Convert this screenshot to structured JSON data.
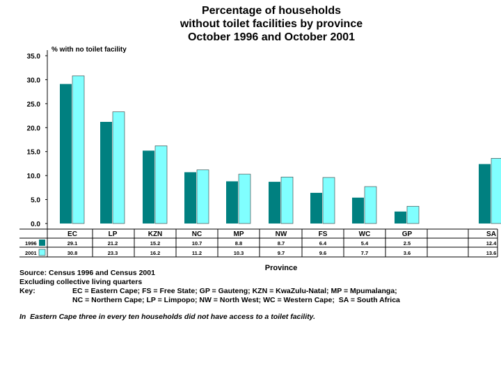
{
  "title": {
    "line1": "Percentage of households",
    "line2": "without toilet facilities by province",
    "line3": "October 1996 and October 2001"
  },
  "colors": {
    "s1996": "#008080",
    "s2001": "#80ffff",
    "outline": "#333333"
  },
  "chart_data": {
    "type": "bar",
    "ylabel": "% with no toilet facility",
    "xlabel": "Province",
    "ylim": [
      0,
      35
    ],
    "yticks": [
      "0.0",
      "5.0",
      "10.0",
      "15.0",
      "20.0",
      "25.0",
      "30.0",
      "35.0"
    ],
    "categories": [
      "EC",
      "LP",
      "KZN",
      "NC",
      "MP",
      "NW",
      "FS",
      "WC",
      "GP",
      "SA"
    ],
    "series": [
      {
        "name": "1996",
        "values": [
          29.1,
          21.2,
          15.2,
          10.7,
          8.8,
          8.7,
          6.4,
          5.4,
          2.5,
          12.4
        ],
        "labels": [
          "29.1",
          "21.2",
          "15.2",
          "10.7",
          "8.8",
          "8.7",
          "6.4",
          "5.4",
          "2.5",
          "12.4"
        ]
      },
      {
        "name": "2001",
        "values": [
          30.8,
          23.3,
          16.2,
          11.2,
          10.3,
          9.7,
          9.6,
          7.7,
          3.6,
          13.6
        ],
        "labels": [
          "30.8",
          "23.3",
          "16.2",
          "11.2",
          "10.3",
          "9.7",
          "9.6",
          "7.7",
          "3.6",
          "13.6"
        ]
      }
    ]
  },
  "footer": {
    "source": "Source: Census 1996 and Census 2001",
    "excluding": "Excluding collective living quarters",
    "key_label": "Key:",
    "key_line1": "EC = Eastern Cape; FS = Free State; GP = Gauteng; KZN = KwaZulu-Natal; MP = Mpumalanga;",
    "key_line2": "NC = Northern Cape; LP = Limpopo; NW = North West; WC = Western Cape;  SA = South Africa",
    "note": "In  Eastern Cape three in every ten households did not have access to a toilet facility."
  }
}
